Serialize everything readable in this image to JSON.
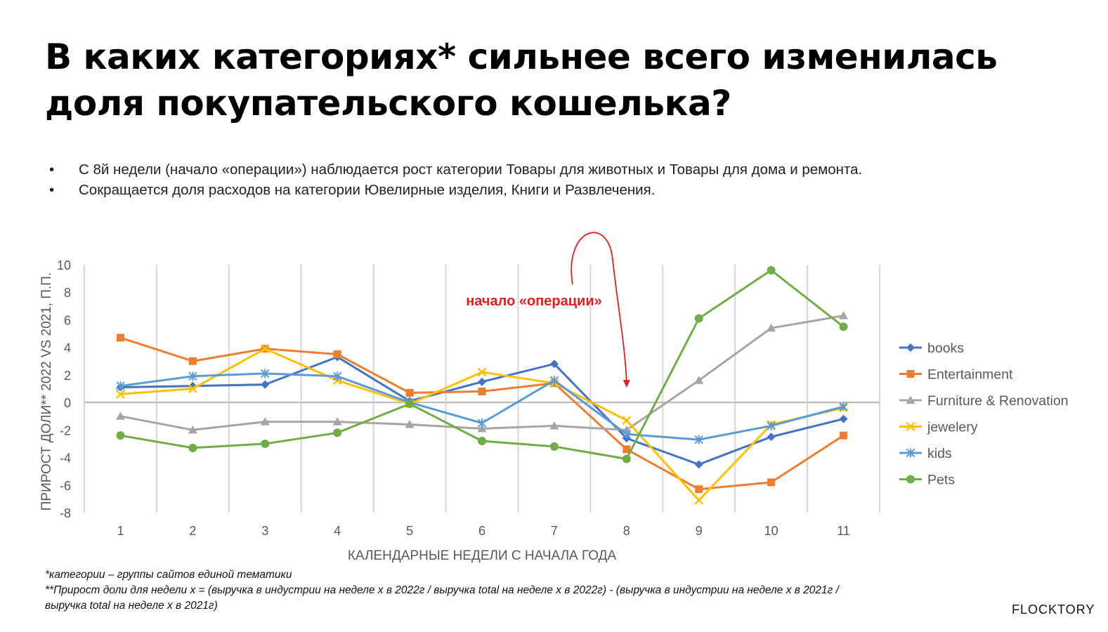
{
  "title_lines": [
    "В каких категориях* сильнее всего изменилась",
    "доля покупательского кошелька?"
  ],
  "bullets": [
    "С 8й недели (начало «операции») наблюдается рост категории Товары для животных и Товары для дома и ремонта.",
    "Сокращается доля расходов на категории Ювелирные изделия, Книги и Развлечения."
  ],
  "chart_data": {
    "type": "line",
    "title": "",
    "xlabel": "КАЛЕНДАРНЫЕ НЕДЕЛИ С НАЧАЛА ГОДА",
    "ylabel": "ПРИРОСТ ДОЛИ** 2022 VS 2021, П.П.",
    "x": [
      1,
      2,
      3,
      4,
      5,
      6,
      7,
      8,
      9,
      10,
      11
    ],
    "x_tick_labels": [
      "1",
      "2",
      "3",
      "4",
      "5",
      "6",
      "7",
      "8",
      "9",
      "10",
      "11"
    ],
    "ylim": [
      -8,
      10
    ],
    "y_ticks": [
      -8,
      -6,
      -4,
      -2,
      0,
      2,
      4,
      6,
      8,
      10
    ],
    "y_tick_labels": [
      "-8",
      "-6",
      "-4",
      "-2",
      "0",
      "2",
      "4",
      "6",
      "8",
      "10"
    ],
    "grid": "vertical",
    "legend_position": "right",
    "series": [
      {
        "name": "books",
        "color": "#4472c4",
        "marker": "diamond",
        "values": [
          1.1,
          1.2,
          1.3,
          3.3,
          0.1,
          1.5,
          2.8,
          -2.6,
          -4.5,
          -2.5,
          -1.2
        ]
      },
      {
        "name": "Entertainment",
        "color": "#ed7d31",
        "marker": "square",
        "values": [
          4.7,
          3.0,
          3.9,
          3.5,
          0.7,
          0.8,
          1.4,
          -3.4,
          -6.3,
          -5.8,
          -2.4
        ]
      },
      {
        "name": "Furniture & Renovation",
        "color": "#a5a5a5",
        "marker": "triangle",
        "values": [
          -1.0,
          -2.0,
          -1.4,
          -1.4,
          -1.6,
          -1.9,
          -1.7,
          -2.0,
          1.6,
          5.4,
          6.3
        ]
      },
      {
        "name": "jewelery",
        "color": "#ffc000",
        "marker": "x",
        "values": [
          0.6,
          1.0,
          3.9,
          1.6,
          -0.1,
          2.2,
          1.4,
          -1.3,
          -7.1,
          -1.6,
          -0.4
        ]
      },
      {
        "name": "kids",
        "color": "#5b9bd5",
        "marker": "star",
        "values": [
          1.2,
          1.9,
          2.1,
          1.9,
          0.0,
          -1.5,
          1.6,
          -2.3,
          -2.7,
          -1.7,
          -0.3
        ]
      },
      {
        "name": "Pets",
        "color": "#70ad47",
        "marker": "circle",
        "values": [
          -2.4,
          -3.3,
          -3.0,
          -2.2,
          -0.1,
          -2.8,
          -3.2,
          -4.1,
          6.1,
          9.6,
          5.5
        ]
      }
    ],
    "annotation": {
      "text": "начало «операции»",
      "x": 8,
      "color": "#e02020"
    }
  },
  "footnotes": [
    "*категории – группы сайтов единой тематики",
    "**Прирост доли для недели x = (выручка в индустрии на неделе x в 2022г / выручка total на неделе x в 2022г) - (выручка в индустрии на неделе x в 2021г /",
    "выручка total на неделе x в 2021г)"
  ],
  "logo": "FLOCKTORY"
}
